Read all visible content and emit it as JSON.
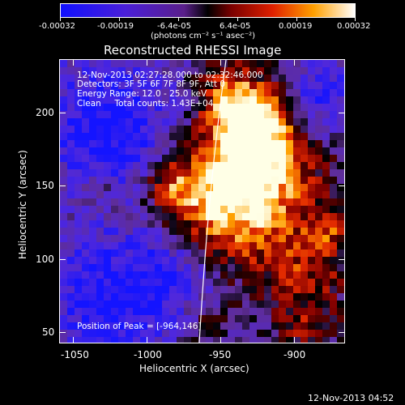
{
  "colorbar": {
    "tick_labels": [
      "-0.00032",
      "-0.00019",
      "-6.4e-05",
      "6.4e-05",
      "0.00019",
      "0.00032"
    ],
    "units": "(photons cm⁻² s⁻¹ asec⁻²)"
  },
  "title": "Reconstructed RHESSI Image",
  "info": {
    "time_range": "12-Nov-2013 02:27:28.000 to 02:32:46.000",
    "detectors": "Detectors: 3F 5F 6F 7F 8F 9F, Att 0",
    "energy": "Energy Range: 12.0 - 25.0 keV",
    "clean": "Clean     Total counts: 1.43E+04",
    "peak": "Position of Peak = [-964,146]"
  },
  "axes": {
    "xlabel": "Heliocentric X (arcsec)",
    "ylabel": "Heliocentric Y (arcsec)",
    "x_ticks": [
      "-1050",
      "-1000",
      "-950",
      "-900"
    ],
    "y_ticks": [
      "50",
      "100",
      "150",
      "200"
    ]
  },
  "footer": {
    "timestamp": "12-Nov-2013 04:52"
  },
  "colors": {
    "neg": "#0000ff",
    "pos": "#ffffff",
    "mid": "#000000"
  },
  "chart_data": {
    "type": "heatmap",
    "title": "Reconstructed RHESSI Image",
    "xlabel": "Heliocentric X (arcsec)",
    "ylabel": "Heliocentric Y (arcsec)",
    "xlim": [
      -1063,
      -930
    ],
    "ylim": [
      44,
      224
    ],
    "colorbar_range": [
      -0.00032,
      0.00032
    ],
    "peak": [
      -964,
      146
    ]
  }
}
